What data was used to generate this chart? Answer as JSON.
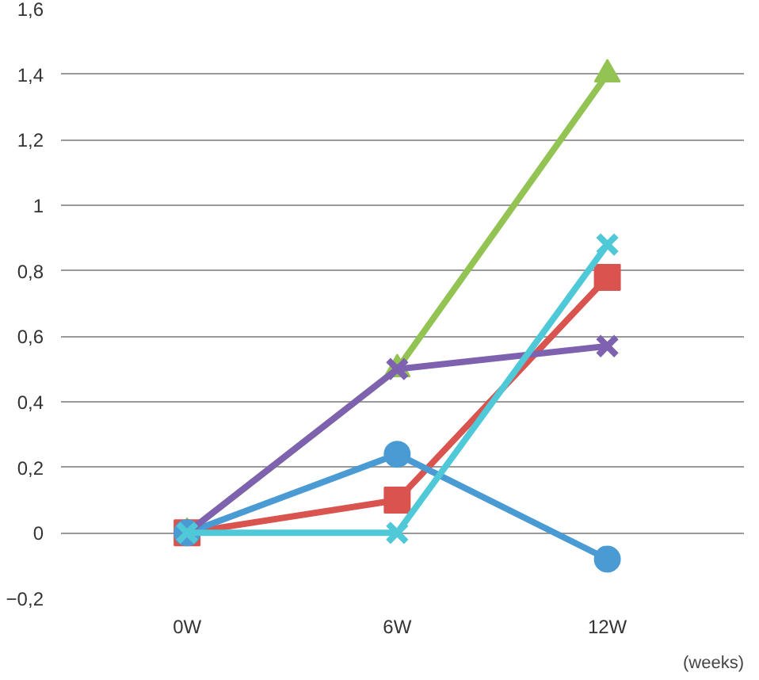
{
  "chart_data": {
    "type": "line",
    "categories": [
      "0W",
      "6W",
      "12W"
    ],
    "xlabel": "(weeks)",
    "ylim": [
      -0.2,
      1.6
    ],
    "yticks": [
      {
        "value": -0.2,
        "label": "−0,2"
      },
      0,
      {
        "value": 0.2,
        "label": "0,2"
      },
      {
        "value": 0.4,
        "label": "0,4"
      },
      {
        "value": 0.6,
        "label": "0,6"
      },
      {
        "value": 0.8,
        "label": "0,8"
      },
      1,
      {
        "value": 1.2,
        "label": "1,2"
      },
      {
        "value": 1.4,
        "label": "1,4"
      },
      {
        "value": 1.6,
        "label": "1,6"
      }
    ],
    "grid": "y",
    "line_style": "solid",
    "series": [
      {
        "color": "#92c353",
        "marker": "triangle",
        "values": [
          0,
          0.5,
          1.4
        ]
      },
      {
        "color": "#d9534f",
        "marker": "square",
        "values": [
          0,
          0.1,
          0.78
        ]
      },
      {
        "color": "#4a9bd4",
        "marker": "circle",
        "values": [
          0,
          0.24,
          -0.08
        ]
      },
      {
        "color": "#7e62b0",
        "marker": "cross",
        "values": [
          0,
          0.5,
          0.57
        ]
      },
      {
        "color": "#4fc8d8",
        "marker": "cross",
        "values": [
          0,
          0,
          0.88
        ]
      }
    ]
  }
}
